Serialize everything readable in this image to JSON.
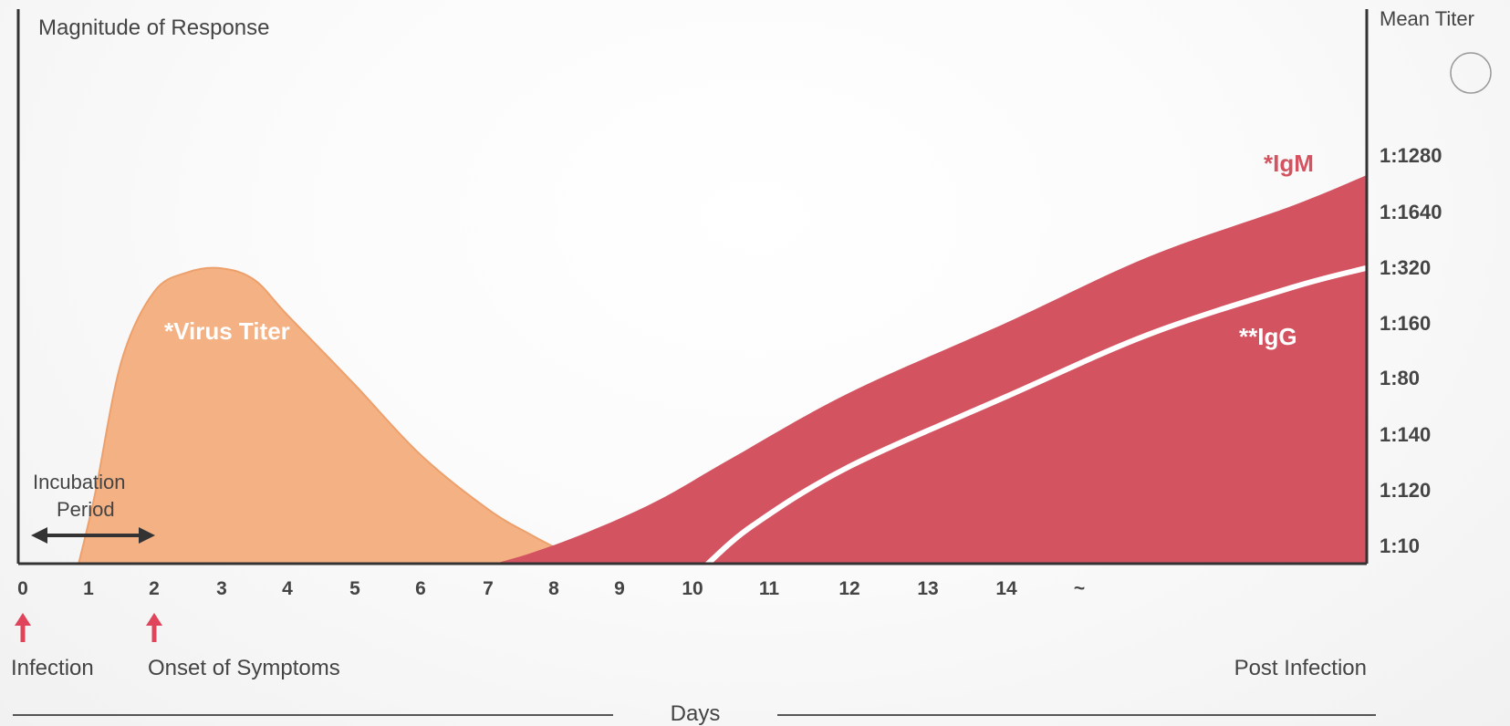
{
  "chart_data": {
    "type": "area",
    "title": "Magnitude of Response",
    "ylabel_right": "Mean Titer",
    "xlabel": "Days",
    "x_ticks": [
      "0",
      "1",
      "2",
      "3",
      "4",
      "5",
      "6",
      "7",
      "8",
      "9",
      "10",
      "11",
      "12",
      "13",
      "14",
      "~"
    ],
    "y_ticks_right": [
      "1:1280",
      "1:1640",
      "1:320",
      "1:160",
      "1:80",
      "1:140",
      "1:120",
      "1:10"
    ],
    "grid": false,
    "series": [
      {
        "name": "*Virus Titer",
        "color": "#f4b184",
        "points": [
          [
            0.85,
            0
          ],
          [
            1.1,
            0.18
          ],
          [
            1.5,
            0.52
          ],
          [
            2.0,
            0.7
          ],
          [
            2.5,
            0.75
          ],
          [
            3.0,
            0.76
          ],
          [
            3.5,
            0.73
          ],
          [
            4.0,
            0.64
          ],
          [
            5.0,
            0.46
          ],
          [
            6.0,
            0.28
          ],
          [
            7.0,
            0.14
          ],
          [
            7.7,
            0.07
          ],
          [
            8.5,
            0
          ]
        ]
      },
      {
        "name": "*IgM",
        "color": "#d35360",
        "points": [
          [
            7.1,
            0
          ],
          [
            7.7,
            0.03
          ],
          [
            8.5,
            0.08
          ],
          [
            9.5,
            0.16
          ],
          [
            10.5,
            0.27
          ],
          [
            12.0,
            0.44
          ],
          [
            14.0,
            0.62
          ],
          [
            16.0,
            0.79
          ],
          [
            18.0,
            0.92
          ],
          [
            19.2,
            1.0
          ]
        ]
      },
      {
        "name": "**IgG",
        "color": "#ffffff",
        "points": [
          [
            10.2,
            0
          ],
          [
            10.8,
            0.1
          ],
          [
            12.0,
            0.25
          ],
          [
            14.0,
            0.43
          ],
          [
            16.0,
            0.59
          ],
          [
            18.0,
            0.71
          ],
          [
            19.2,
            0.76
          ]
        ]
      }
    ],
    "annotations": {
      "incubation": "Incubation\nPeriod",
      "infection": "Infection",
      "onset": "Onset of Symptoms",
      "post": "Post Infection",
      "virus_label": "*Virus Titer",
      "igm_label": "*IgM",
      "igg_label": "**IgG"
    },
    "colors": {
      "virus": "#f4b184",
      "virus_edge": "#eda06b",
      "igm": "#d35360",
      "arrow_red": "#e0445a",
      "axis": "#333333",
      "text": "#444444"
    }
  }
}
